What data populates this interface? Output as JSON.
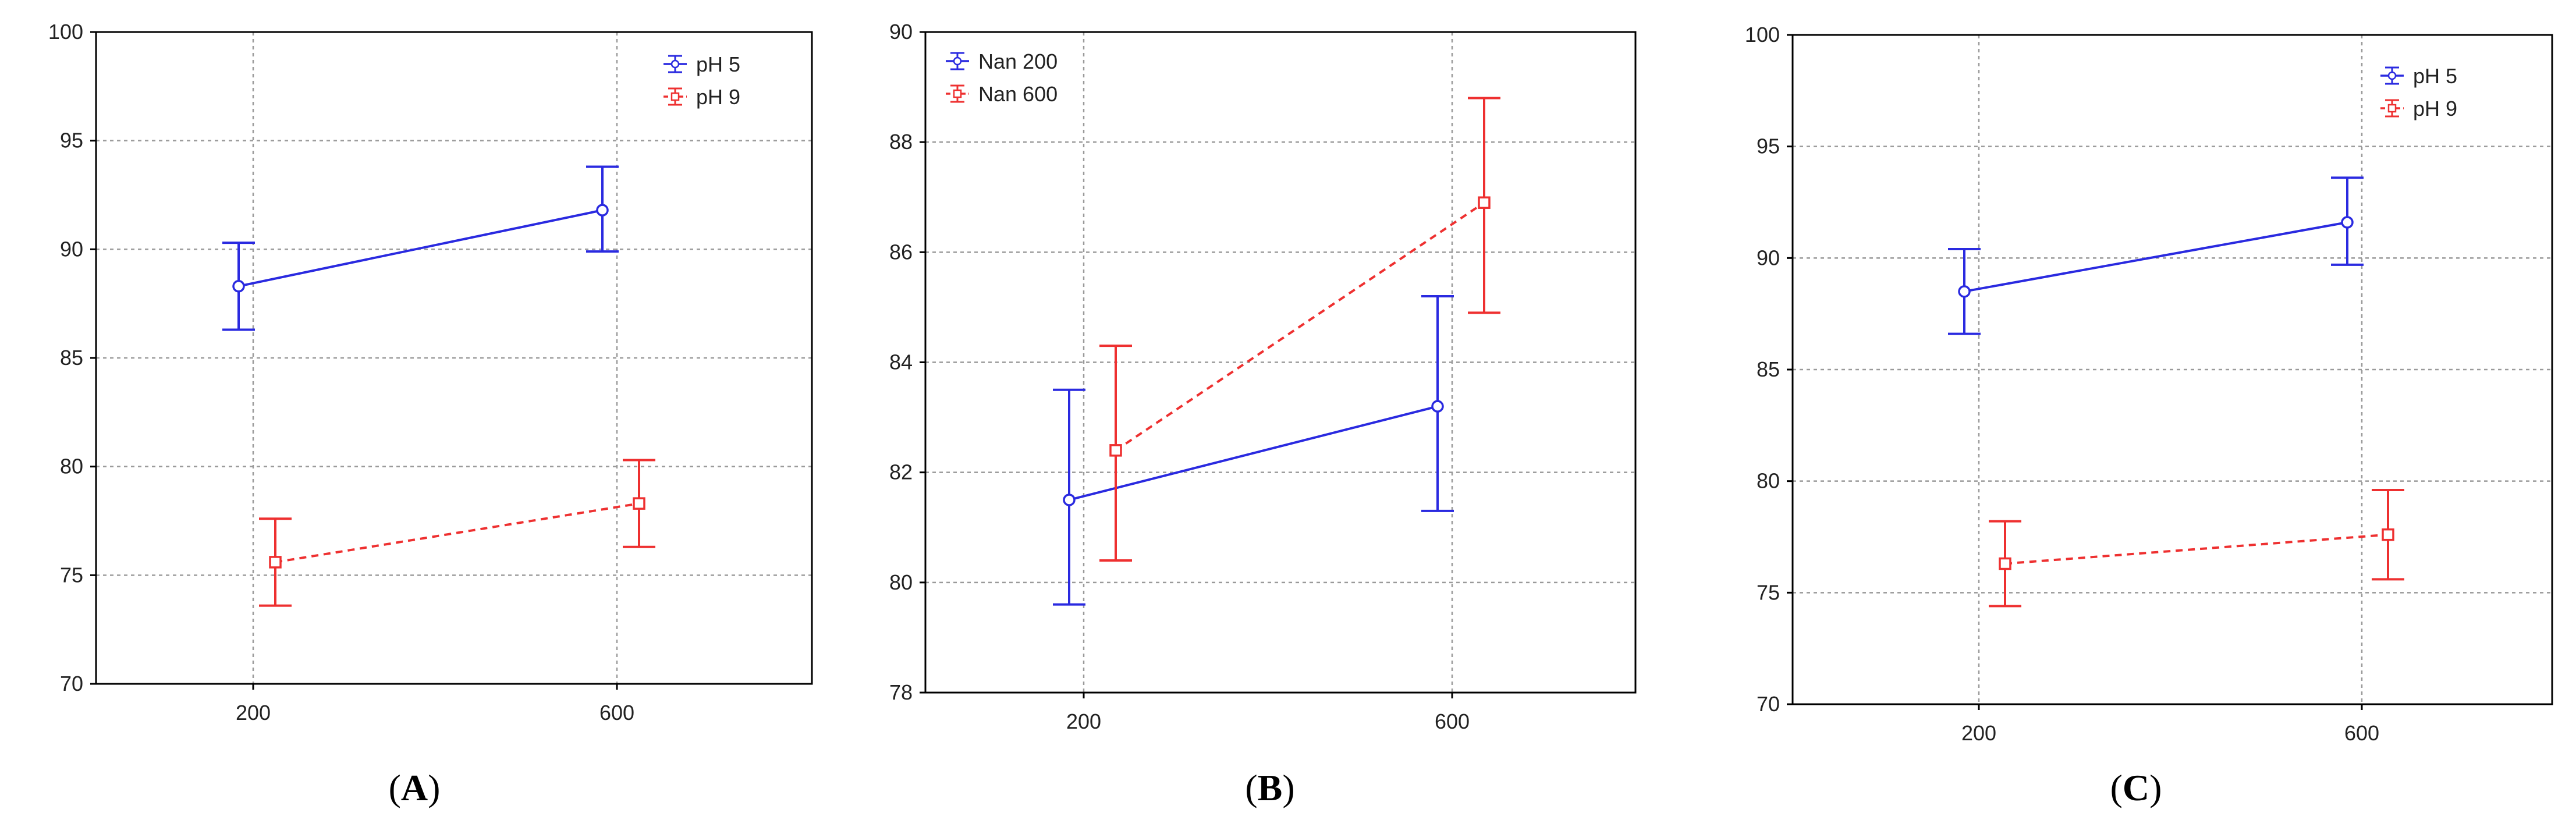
{
  "panels": [
    {
      "label_open": "(",
      "label_letter": "A",
      "label_close": ")"
    },
    {
      "label_open": "(",
      "label_letter": "B",
      "label_close": ")"
    },
    {
      "label_open": "(",
      "label_letter": "C",
      "label_close": ")"
    }
  ],
  "colors": {
    "series_1": "#2a2ae0",
    "series_2": "#ee3030"
  },
  "chart_data": [
    {
      "type": "line",
      "x": [
        "200",
        "600"
      ],
      "ylim": [
        70,
        100
      ],
      "yticks": [
        70,
        75,
        80,
        85,
        90,
        95,
        100
      ],
      "grid": true,
      "legend_position": "top-right",
      "series": [
        {
          "name": "pH 5",
          "color": "#2a2ae0",
          "style": "solid",
          "marker": "circle",
          "values": [
            88.3,
            91.8
          ],
          "err_low": [
            86.3,
            89.9
          ],
          "err_high": [
            90.3,
            93.8
          ]
        },
        {
          "name": "pH 9",
          "color": "#ee3030",
          "style": "dashed",
          "marker": "square",
          "values": [
            75.6,
            78.3
          ],
          "err_low": [
            73.6,
            76.3
          ],
          "err_high": [
            77.6,
            80.3
          ]
        }
      ]
    },
    {
      "type": "line",
      "x": [
        "200",
        "600"
      ],
      "ylim": [
        78,
        90
      ],
      "yticks": [
        78,
        80,
        82,
        84,
        86,
        88,
        90
      ],
      "grid": true,
      "legend_position": "top-left",
      "series": [
        {
          "name": "Nan 200",
          "color": "#2a2ae0",
          "style": "solid",
          "marker": "circle",
          "values": [
            81.5,
            83.2
          ],
          "err_low": [
            79.6,
            81.3
          ],
          "err_high": [
            83.5,
            85.2
          ]
        },
        {
          "name": "Nan 600",
          "color": "#ee3030",
          "style": "dashed",
          "marker": "square",
          "values": [
            82.4,
            86.9
          ],
          "err_low": [
            80.4,
            84.9
          ],
          "err_high": [
            84.3,
            88.8
          ]
        }
      ]
    },
    {
      "type": "line",
      "x": [
        "200",
        "600"
      ],
      "ylim": [
        70,
        100
      ],
      "yticks": [
        70,
        75,
        80,
        85,
        90,
        95,
        100
      ],
      "grid": true,
      "legend_position": "top-right",
      "series": [
        {
          "name": "pH 5",
          "color": "#2a2ae0",
          "style": "solid",
          "marker": "circle",
          "values": [
            88.5,
            91.6
          ],
          "err_low": [
            86.6,
            89.7
          ],
          "err_high": [
            90.4,
            93.6
          ]
        },
        {
          "name": "pH 9",
          "color": "#ee3030",
          "style": "dashed",
          "marker": "square",
          "values": [
            76.3,
            77.6
          ],
          "err_low": [
            74.4,
            75.6
          ],
          "err_high": [
            78.2,
            79.6
          ]
        }
      ]
    }
  ]
}
